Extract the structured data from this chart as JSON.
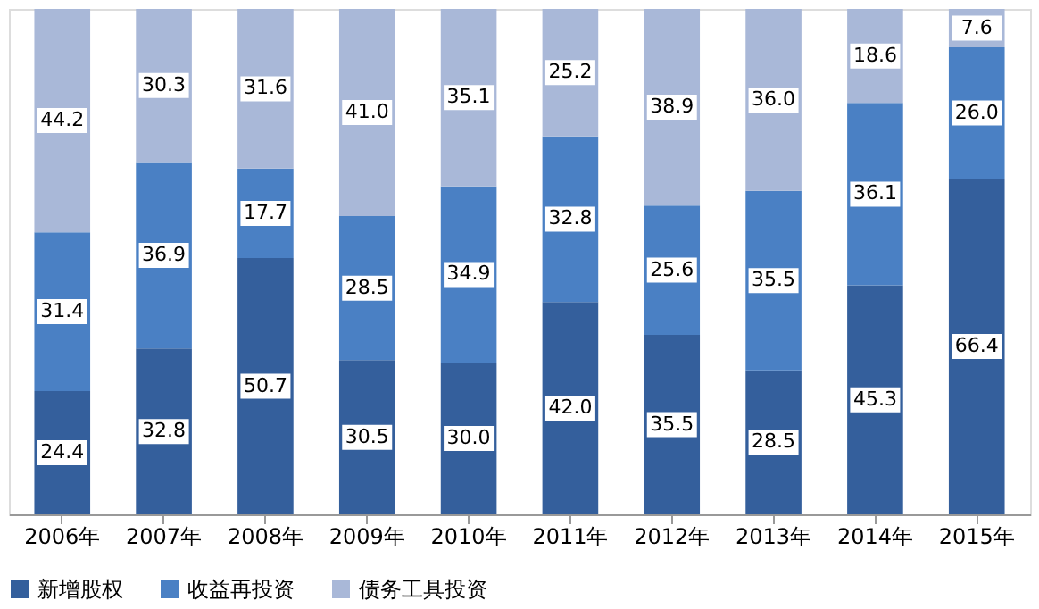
{
  "chart_data": {
    "type": "bar",
    "stacked": true,
    "legend": "bottom",
    "grid": false,
    "categories": [
      "2006年",
      "2007年",
      "2008年",
      "2009年",
      "2010年",
      "2011年",
      "2012年",
      "2013年",
      "2014年",
      "2015年"
    ],
    "series": [
      {
        "name": "新增股权",
        "color": "#345f9c",
        "values": [
          24.4,
          32.8,
          50.7,
          30.5,
          30.0,
          42.0,
          35.5,
          28.5,
          45.3,
          66.4
        ],
        "value_labels": [
          "24.4",
          "32.8",
          "50.7",
          "30.5",
          "30.0",
          "42.0",
          "35.5",
          "28.5",
          "45.3",
          "66.4"
        ]
      },
      {
        "name": "收益再投资",
        "color": "#4a80c4",
        "values": [
          31.4,
          36.9,
          17.7,
          28.5,
          34.9,
          32.8,
          25.6,
          35.5,
          36.1,
          26.0
        ],
        "value_labels": [
          "31.4",
          "36.9",
          "17.7",
          "28.5",
          "34.9",
          "32.8",
          "25.6",
          "35.5",
          "36.1",
          "26.0"
        ]
      },
      {
        "name": "债务工具投资",
        "color": "#a9b8d8",
        "values": [
          44.2,
          30.3,
          31.6,
          41.0,
          35.1,
          25.2,
          38.9,
          36.0,
          18.6,
          7.6
        ],
        "value_labels": [
          "44.2",
          "30.3",
          "31.6",
          "41.0",
          "35.1",
          "25.2",
          "38.9",
          "36.0",
          "18.6",
          "7.6"
        ]
      }
    ]
  }
}
